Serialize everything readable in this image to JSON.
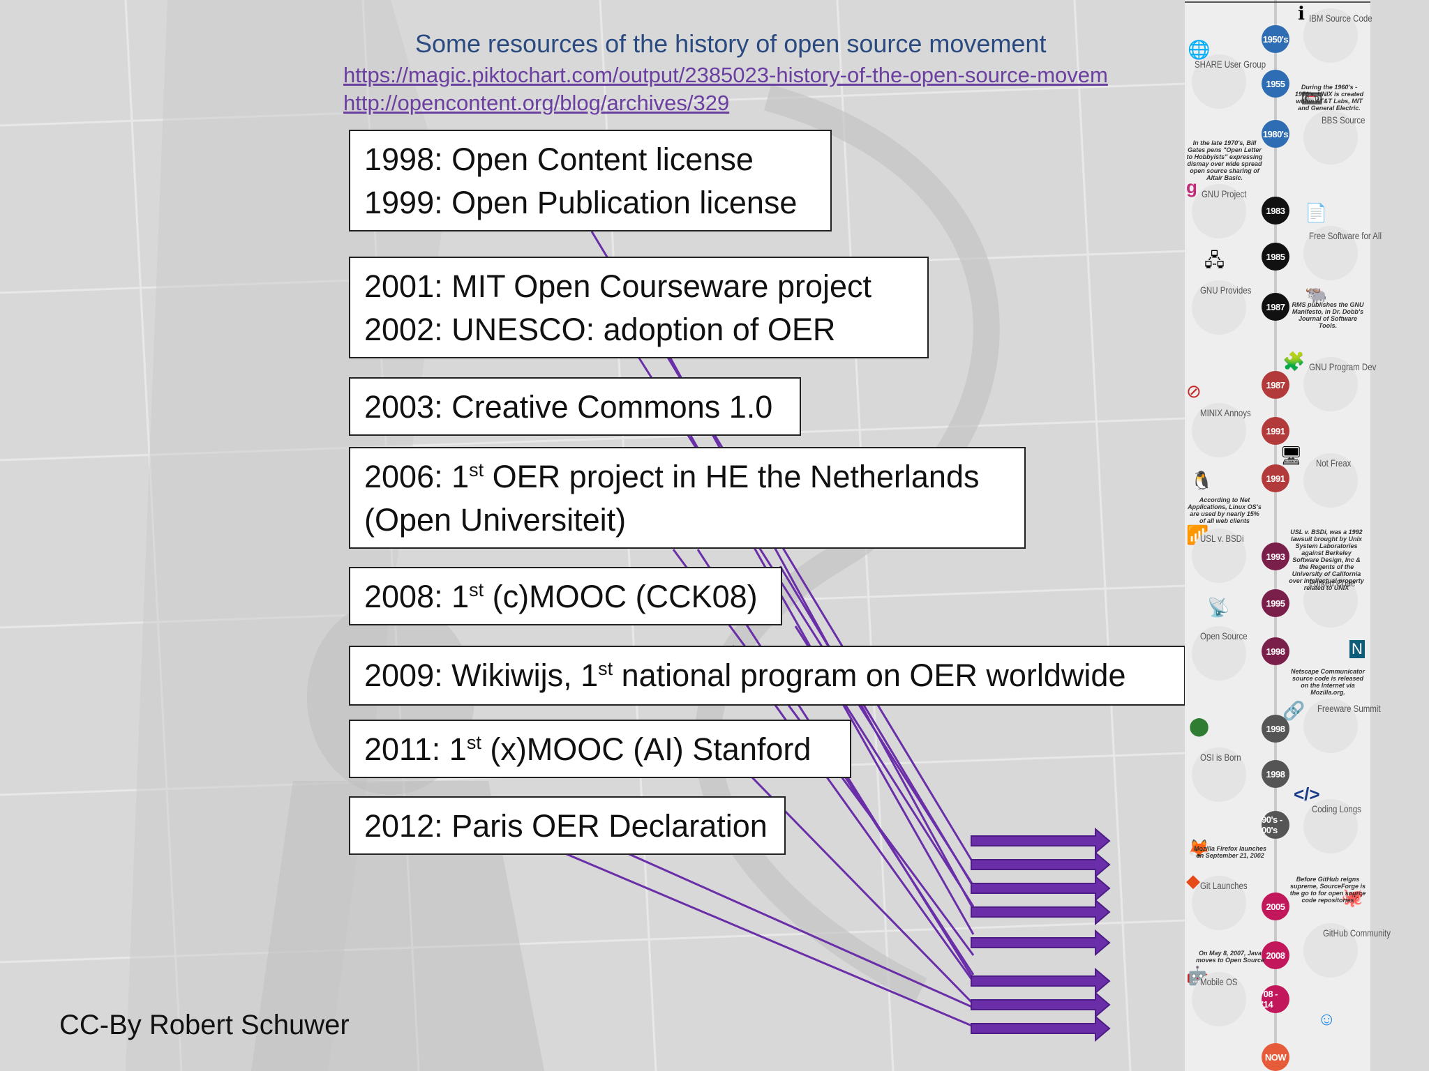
{
  "header": {
    "title": "Some resources of the history of open source movement",
    "links": [
      "https://magic.piktochart.com/output/2385023-history-of-the-open-source-movem",
      "http://opencontent.org/blog/archives/329"
    ]
  },
  "events": [
    {
      "lines": [
        {
          "pre": "1998: Open Content license"
        },
        {
          "pre": "1999: Open Publication license"
        }
      ]
    },
    {
      "lines": [
        {
          "pre": "2001: MIT Open Courseware project"
        },
        {
          "pre": "2002: UNESCO: adoption of OER"
        }
      ]
    },
    {
      "lines": [
        {
          "pre": "2003: Creative Commons 1.0"
        }
      ]
    },
    {
      "lines": [
        {
          "pre": "2006: 1",
          "sup": "st",
          "post": " OER project in HE the Netherlands"
        },
        {
          "pre": "(Open Universiteit)"
        }
      ]
    },
    {
      "lines": [
        {
          "pre": "2008: 1",
          "sup": "st",
          "post": " (c)MOOC (CCK08)"
        }
      ]
    },
    {
      "lines": [
        {
          "pre": "2009: Wikiwijs, 1",
          "sup": "st",
          "post": " national program on OER worldwide"
        }
      ]
    },
    {
      "lines": [
        {
          "pre": "2011: 1",
          "sup": "st",
          "post": " (x)MOOC (AI) Stanford"
        }
      ]
    },
    {
      "lines": [
        {
          "pre": "2012: Paris OER Declaration"
        }
      ]
    }
  ],
  "credit": "CC-By Robert Schuwer",
  "colors": {
    "arrow": "#6a2fa8",
    "line": "#6a2fa8",
    "link": "#6b3fa0",
    "title": "#2b4b80"
  },
  "infographic": {
    "years": [
      {
        "label": "1950's",
        "color": "#2e6db4"
      },
      {
        "label": "1955",
        "color": "#2e6db4"
      },
      {
        "label": "1980's",
        "color": "#2e6db4"
      },
      {
        "label": "1983",
        "color": "#111111"
      },
      {
        "label": "1985",
        "color": "#111111"
      },
      {
        "label": "1987",
        "color": "#111111"
      },
      {
        "label": "1987",
        "color": "#b33a3a"
      },
      {
        "label": "1991",
        "color": "#b33a3a"
      },
      {
        "label": "1991",
        "color": "#b33a3a"
      },
      {
        "label": "1993",
        "color": "#7a1f4a"
      },
      {
        "label": "1995",
        "color": "#7a1f4a"
      },
      {
        "label": "1998",
        "color": "#7a1f4a"
      },
      {
        "label": "1998",
        "color": "#555555"
      },
      {
        "label": "1998",
        "color": "#555555"
      },
      {
        "label": "90's - 00's",
        "color": "#555555"
      },
      {
        "label": "2005",
        "color": "#c2185b"
      },
      {
        "label": "2008",
        "color": "#c2185b"
      },
      {
        "label": "'08 - '14",
        "color": "#c2185b"
      },
      {
        "label": "NOW",
        "color": "#e65c3a"
      }
    ],
    "labels": [
      {
        "text": "IBM Source Code",
        "side": "right"
      },
      {
        "text": "SHARE User Group",
        "side": "left"
      },
      {
        "text": "BBS Source",
        "side": "right"
      },
      {
        "text": "GNU Project",
        "side": "left"
      },
      {
        "text": "Free Software for All",
        "side": "right"
      },
      {
        "text": "GNU Provides",
        "side": "left"
      },
      {
        "text": "GNU Program Dev",
        "side": "right"
      },
      {
        "text": "MINIX Annoys",
        "side": "left"
      },
      {
        "text": "Not Freax",
        "side": "right"
      },
      {
        "text": "USL v. BSDi",
        "side": "left"
      },
      {
        "text": "Forked Code",
        "side": "right"
      },
      {
        "text": "Open Source",
        "side": "left"
      },
      {
        "text": "Freeware Summit",
        "side": "right"
      },
      {
        "text": "OSI is Born",
        "side": "left"
      },
      {
        "text": "Coding Longs",
        "side": "right"
      },
      {
        "text": "Git Launches",
        "side": "left"
      },
      {
        "text": "GitHub Community",
        "side": "right"
      },
      {
        "text": "Mobile OS",
        "side": "left"
      }
    ],
    "notes": [
      "During the 1960's - 1970's, UNIX is created within AT&T Labs, MIT and General Electric.",
      "In the late 1970's, Bill Gates pens \"Open Letter to Hobbyists\" expressing dismay over wide spread open source sharing of Altair Basic.",
      "RMS publishes the GNU Manifesto, in Dr. Dobb's Journal of Software Tools.",
      "According to Net Applications, Linux OS's are used by nearly 15% of all web clients",
      "USL v. BSDi, was a 1992 lawsuit brought by Unix System Laboratories against Berkeley Software Design, Inc & the Regents of the University of California over intellectual property related to UNIX",
      "Netscape Communicator source code is released on the Internet via Mozilla.org.",
      "Mozilla Firefox launches on September 21, 2002",
      "Before GitHub reigns supreme, SourceForge is the go to for open source code repositories",
      "On May 8, 2007, Java moves to Open Source"
    ]
  }
}
